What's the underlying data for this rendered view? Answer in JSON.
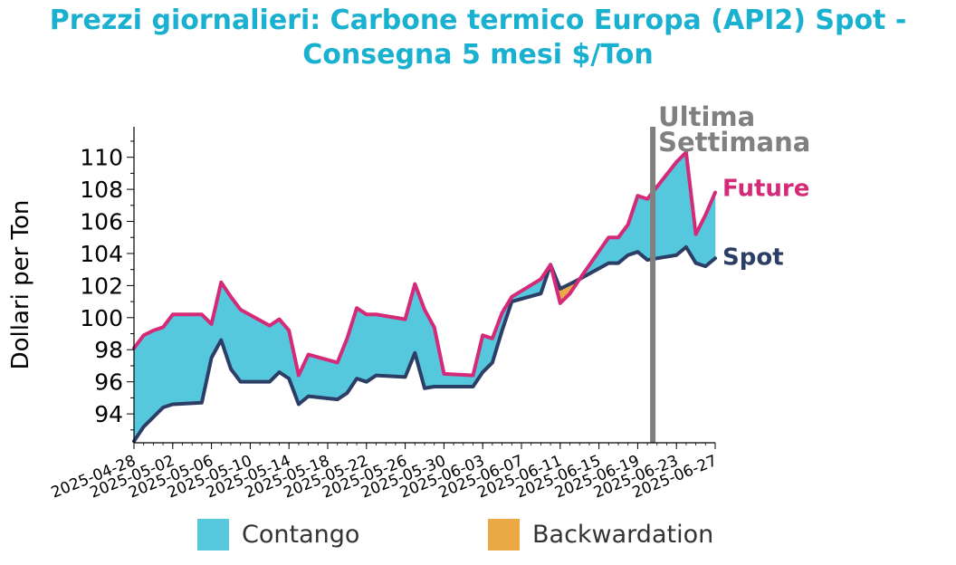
{
  "title_line1": "Prezzi giornalieri: Carbone termico Europa (API2) Spot -",
  "title_line2": "Consegna 5 mesi $/Ton",
  "chart_data": {
    "type": "area",
    "ylabel": "Dollari per Ton",
    "ylim": [
      92.2,
      111.9
    ],
    "yticks": [
      94,
      96,
      98,
      100,
      102,
      104,
      106,
      108,
      110
    ],
    "xlim": [
      "2025-04-28",
      "2025-06-27"
    ],
    "xticks": [
      "2025-04-28",
      "2025-05-02",
      "2025-05-06",
      "2025-05-10",
      "2025-05-14",
      "2025-05-18",
      "2025-05-22",
      "2025-05-26",
      "2025-05-30",
      "2025-06-03",
      "2025-06-07",
      "2025-06-11",
      "2025-06-15",
      "2025-06-19",
      "2025-06-23",
      "2025-06-27"
    ],
    "series": [
      {
        "name": "Future",
        "color": "#d42a78",
        "x": [
          "2025-04-28",
          "2025-04-29",
          "2025-04-30",
          "2025-05-01",
          "2025-05-02",
          "2025-05-05",
          "2025-05-06",
          "2025-05-07",
          "2025-05-08",
          "2025-05-09",
          "2025-05-12",
          "2025-05-13",
          "2025-05-14",
          "2025-05-15",
          "2025-05-16",
          "2025-05-19",
          "2025-05-20",
          "2025-05-21",
          "2025-05-22",
          "2025-05-23",
          "2025-05-26",
          "2025-05-27",
          "2025-05-28",
          "2025-05-29",
          "2025-05-30",
          "2025-06-02",
          "2025-06-03",
          "2025-06-04",
          "2025-06-05",
          "2025-06-06",
          "2025-06-09",
          "2025-06-10",
          "2025-06-11",
          "2025-06-12",
          "2025-06-13",
          "2025-06-16",
          "2025-06-17",
          "2025-06-18",
          "2025-06-19",
          "2025-06-20",
          "2025-06-23",
          "2025-06-24",
          "2025-06-25",
          "2025-06-26",
          "2025-06-27"
        ],
        "values": [
          98.1,
          98.9,
          99.2,
          99.4,
          100.2,
          100.2,
          99.6,
          102.2,
          101.3,
          100.5,
          99.5,
          99.9,
          99.2,
          96.4,
          97.7,
          97.2,
          98.7,
          100.6,
          100.2,
          100.2,
          99.9,
          102.1,
          100.5,
          99.4,
          96.5,
          96.4,
          98.9,
          98.7,
          100.3,
          101.3,
          102.4,
          103.3,
          100.9,
          101.5,
          102.4,
          105.0,
          105.0,
          105.8,
          107.6,
          107.4,
          109.7,
          110.3,
          105.2,
          106.4,
          107.8
        ]
      },
      {
        "name": "Spot",
        "color": "#2c3e66",
        "x": [
          "2025-04-28",
          "2025-04-29",
          "2025-04-30",
          "2025-05-01",
          "2025-05-02",
          "2025-05-05",
          "2025-05-06",
          "2025-05-07",
          "2025-05-08",
          "2025-05-09",
          "2025-05-12",
          "2025-05-13",
          "2025-05-14",
          "2025-05-15",
          "2025-05-16",
          "2025-05-19",
          "2025-05-20",
          "2025-05-21",
          "2025-05-22",
          "2025-05-23",
          "2025-05-26",
          "2025-05-27",
          "2025-05-28",
          "2025-05-29",
          "2025-05-30",
          "2025-06-02",
          "2025-06-03",
          "2025-06-04",
          "2025-06-05",
          "2025-06-06",
          "2025-06-09",
          "2025-06-10",
          "2025-06-11",
          "2025-06-12",
          "2025-06-13",
          "2025-06-16",
          "2025-06-17",
          "2025-06-18",
          "2025-06-19",
          "2025-06-20",
          "2025-06-23",
          "2025-06-24",
          "2025-06-25",
          "2025-06-26",
          "2025-06-27"
        ],
        "values": [
          92.3,
          93.2,
          93.8,
          94.4,
          94.6,
          94.7,
          97.5,
          98.6,
          96.8,
          96.0,
          96.0,
          96.6,
          96.2,
          94.6,
          95.1,
          94.9,
          95.3,
          96.2,
          96.0,
          96.4,
          96.3,
          97.8,
          95.6,
          95.7,
          95.7,
          95.7,
          96.6,
          97.2,
          99.2,
          101.0,
          101.5,
          103.3,
          101.8,
          102.1,
          102.4,
          103.4,
          103.4,
          103.9,
          104.1,
          103.6,
          103.9,
          104.4,
          103.4,
          103.2,
          103.7
        ]
      }
    ],
    "fill_legend": [
      {
        "label": "Contango",
        "color": "#56c8dd"
      },
      {
        "label": "Backwardation",
        "color": "#eaa945"
      }
    ],
    "annotations": [
      {
        "text_line1": "Ultima",
        "text_line2": "Settimana",
        "x": "2025-06-20",
        "color": "#808080"
      }
    ]
  }
}
